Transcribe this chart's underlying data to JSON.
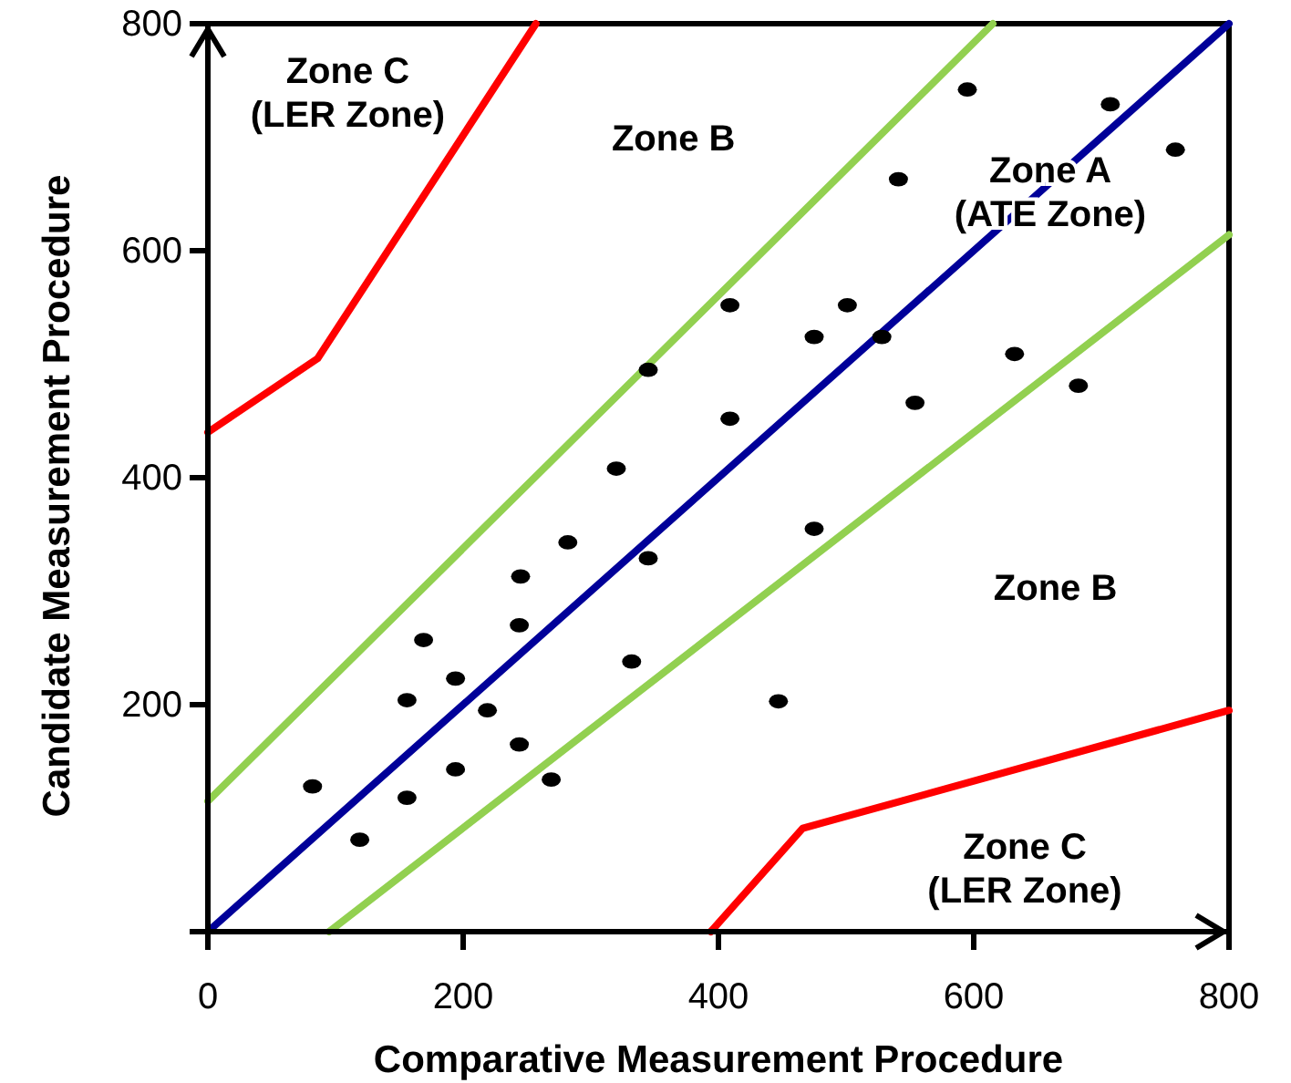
{
  "chart_data": {
    "type": "scatter",
    "xlabel": "Comparative Measurement Procedure",
    "ylabel": "Candidate Measurement Procedure",
    "xlim": [
      0,
      800
    ],
    "ylim": [
      0,
      800
    ],
    "xticks": [
      {
        "value": 0,
        "label": "0"
      },
      200,
      400,
      600,
      800
    ],
    "yticks": [
      {
        "value": 0,
        "label": null
      },
      200,
      400,
      600,
      800
    ],
    "grid": false,
    "series": [
      {
        "type": "line",
        "color": "#ff0000",
        "x": [
          0,
          86,
          257
        ],
        "values": [
          440,
          505,
          800
        ]
      },
      {
        "type": "line",
        "color": "#ff0000",
        "x": [
          394,
          466,
          800
        ],
        "values": [
          0,
          91,
          195
        ]
      },
      {
        "type": "line",
        "color": "#92d050",
        "x": [
          0,
          615
        ],
        "values": [
          115,
          800
        ]
      },
      {
        "type": "line",
        "color": "#92d050",
        "x": [
          95,
          800
        ],
        "values": [
          0,
          614
        ]
      },
      {
        "type": "line",
        "color": "#000099",
        "x": [
          0,
          800
        ],
        "values": [
          0,
          800
        ]
      },
      {
        "marker": "circle",
        "color": "#000000",
        "x": [
          82,
          119,
          156,
          194,
          244,
          269,
          156,
          219,
          194,
          169,
          244,
          245,
          282,
          345,
          332,
          447,
          475,
          320,
          345,
          595,
          707,
          758,
          541,
          409,
          501,
          475,
          528,
          632,
          682,
          554,
          409
        ],
        "values": [
          128,
          81,
          118,
          143,
          165,
          134,
          204,
          195,
          223,
          257,
          270,
          313,
          343,
          329,
          238,
          203,
          355,
          408,
          495,
          742,
          729,
          689,
          663,
          552,
          552,
          524,
          524,
          509,
          481,
          466,
          452
        ]
      }
    ],
    "annotations": [
      "Zone C\n(LER Zone)",
      "Zone B",
      "Zone A\n(ATE Zone)",
      "Zone B",
      "Zone C\n(LER Zone)"
    ]
  }
}
